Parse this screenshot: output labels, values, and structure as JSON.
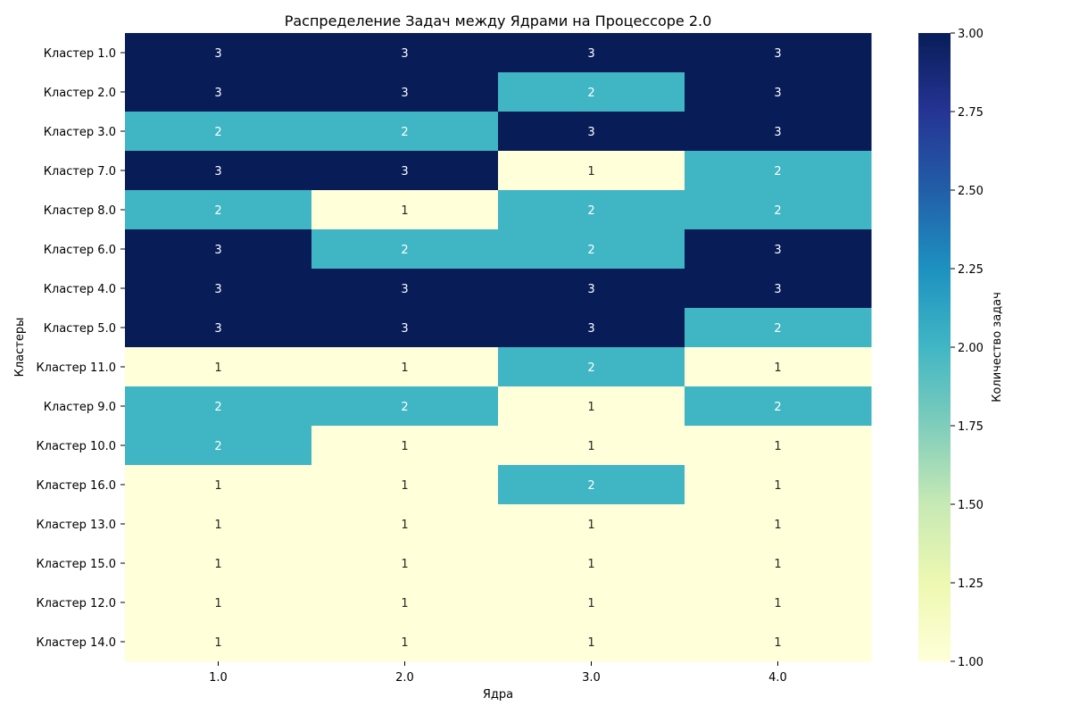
{
  "chart_data": {
    "type": "heatmap",
    "title": "Распределение Задач между Ядрами на Процессоре 2.0",
    "xlabel": "Ядра",
    "ylabel": "Кластеры",
    "colorbar_label": "Количество задач",
    "x_categories": [
      "1.0",
      "2.0",
      "3.0",
      "4.0"
    ],
    "y_categories": [
      "Кластер 1.0",
      "Кластер 2.0",
      "Кластер 3.0",
      "Кластер 7.0",
      "Кластер 8.0",
      "Кластер 6.0",
      "Кластер 4.0",
      "Кластер 5.0",
      "Кластер 11.0",
      "Кластер 9.0",
      "Кластер 10.0",
      "Кластер 16.0",
      "Кластер 13.0",
      "Кластер 15.0",
      "Кластер 12.0",
      "Кластер 14.0"
    ],
    "values": [
      [
        3,
        3,
        3,
        3
      ],
      [
        3,
        3,
        2,
        3
      ],
      [
        2,
        2,
        3,
        3
      ],
      [
        3,
        3,
        1,
        2
      ],
      [
        2,
        1,
        2,
        2
      ],
      [
        3,
        2,
        2,
        3
      ],
      [
        3,
        3,
        3,
        3
      ],
      [
        3,
        3,
        3,
        2
      ],
      [
        1,
        1,
        2,
        1
      ],
      [
        2,
        2,
        1,
        2
      ],
      [
        2,
        1,
        1,
        1
      ],
      [
        1,
        1,
        2,
        1
      ],
      [
        1,
        1,
        1,
        1
      ],
      [
        1,
        1,
        1,
        1
      ],
      [
        1,
        1,
        1,
        1
      ],
      [
        1,
        1,
        1,
        1
      ]
    ],
    "value_range": [
      1.0,
      3.0
    ],
    "colorbar_ticks": [
      "1.00",
      "1.25",
      "1.50",
      "1.75",
      "2.00",
      "2.25",
      "2.50",
      "2.75",
      "3.00"
    ],
    "colormap": "YlGnBu",
    "cell_colors": {
      "1": "#ffffd9",
      "2": "#40b5c4",
      "3": "#081d58"
    },
    "annotation_colors": {
      "light": "#262626",
      "dark": "#ffffff"
    },
    "grid": false
  }
}
